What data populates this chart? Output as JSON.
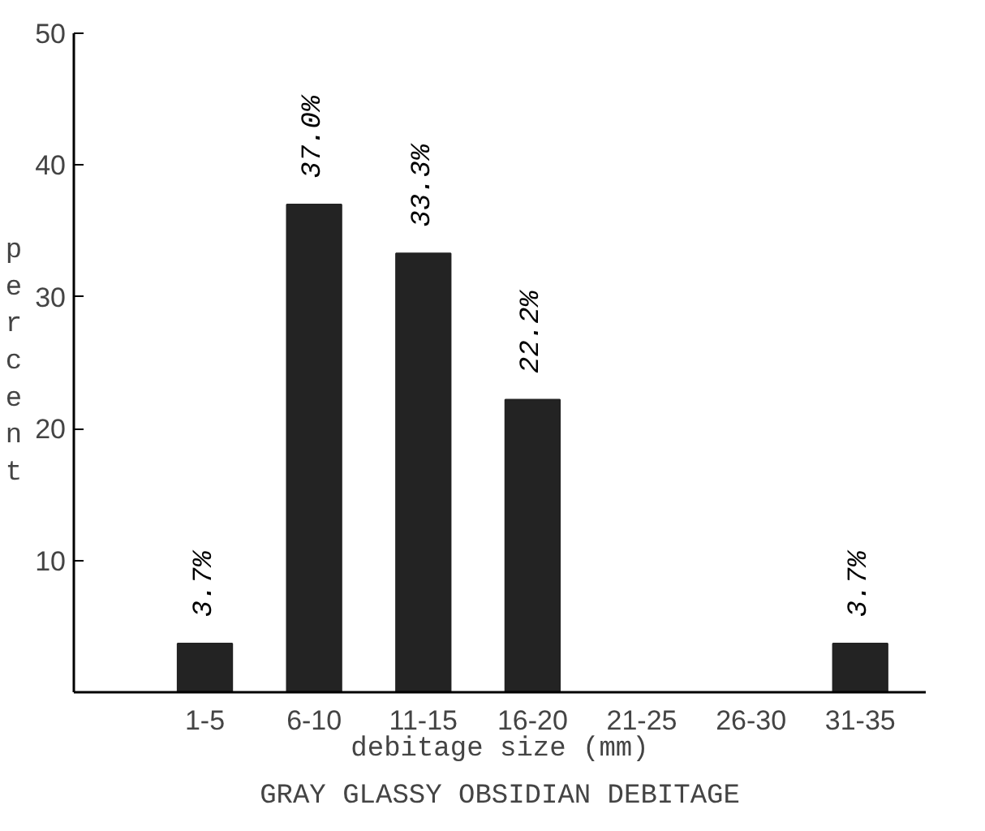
{
  "chart_data": {
    "type": "bar",
    "title": "GRAY GLASSY OBSIDIAN DEBITAGE",
    "xlabel": "debitage size (mm)",
    "ylabel": "percent",
    "categories": [
      "1-5",
      "6-10",
      "11-15",
      "16-20",
      "21-25",
      "26-30",
      "31-35"
    ],
    "values": [
      3.7,
      37.0,
      33.3,
      22.2,
      null,
      null,
      3.7
    ],
    "value_labels": [
      "3.7%",
      "37.0%",
      "33.3%",
      "22.2%",
      null,
      null,
      "3.7%"
    ],
    "color": "#232323",
    "ylim": [
      0,
      50
    ],
    "yticks": [
      10,
      20,
      30,
      40,
      50
    ],
    "grid": false
  }
}
